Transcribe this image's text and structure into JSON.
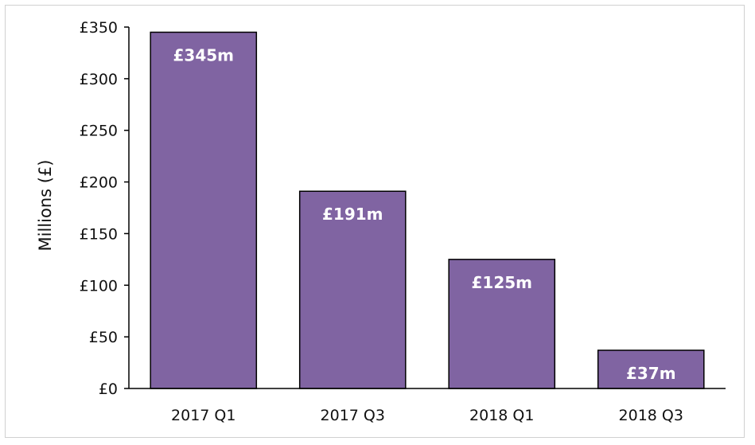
{
  "chart_data": {
    "type": "bar",
    "categories": [
      "2017 Q1",
      "2017 Q3",
      "2018 Q1",
      "2018 Q3"
    ],
    "values": [
      345,
      191,
      125,
      37
    ],
    "data_labels": [
      "£345m",
      "£191m",
      "£125m",
      "£37m"
    ],
    "ylabel": "Millions (£)",
    "ylim": [
      0,
      350
    ],
    "yticks": [
      0,
      50,
      100,
      150,
      200,
      250,
      300,
      350
    ],
    "ytick_labels": [
      "£0",
      "£50",
      "£100",
      "£150",
      "£200",
      "£250",
      "£300",
      "£350"
    ],
    "grid": false,
    "legend": "none",
    "bar_color": "#8064a2",
    "bar_edge_color": "#000000"
  }
}
